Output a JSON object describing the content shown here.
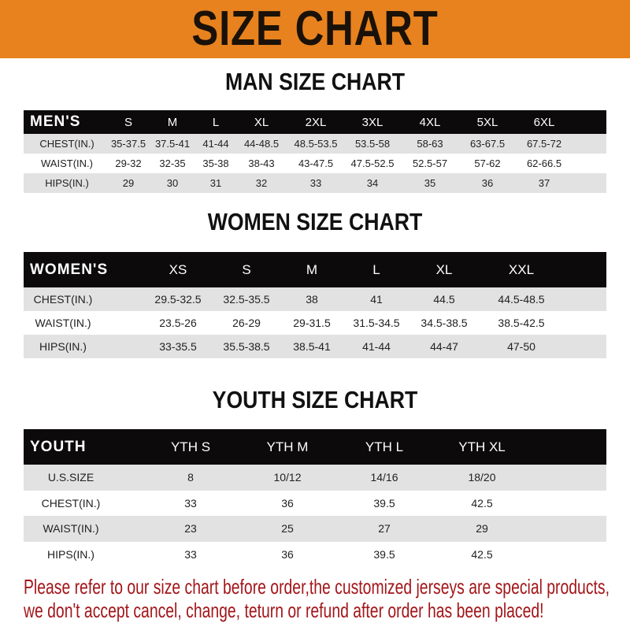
{
  "banner": {
    "title": "SIZE CHART",
    "color": "#e8821e"
  },
  "men": {
    "title": "MAN SIZE CHART",
    "header": [
      "MEN'S",
      "S",
      "M",
      "L",
      "XL",
      "2XL",
      "3XL",
      "4XL",
      "5XL",
      "6XL"
    ],
    "rows": [
      [
        "CHEST(IN.)",
        "35-37.5",
        "37.5-41",
        "41-44",
        "44-48.5",
        "48.5-53.5",
        "53.5-58",
        "58-63",
        "63-67.5",
        "67.5-72"
      ],
      [
        "WAIST(IN.)",
        "29-32",
        "32-35",
        "35-38",
        "38-43",
        "43-47.5",
        "47.5-52.5",
        "52.5-57",
        "57-62",
        "62-66.5"
      ],
      [
        "HIPS(IN.)",
        "29",
        "30",
        "31",
        "32",
        "33",
        "34",
        "35",
        "36",
        "37"
      ]
    ]
  },
  "women": {
    "title": "WOMEN SIZE CHART",
    "header": [
      "WOMEN'S",
      "XS",
      "S",
      "M",
      "L",
      "XL",
      "XXL"
    ],
    "rows": [
      [
        "CHEST(IN.)",
        "29.5-32.5",
        "32.5-35.5",
        "38",
        "41",
        "44.5",
        "44.5-48.5"
      ],
      [
        "WAIST(IN.)",
        "23.5-26",
        "26-29",
        "29-31.5",
        "31.5-34.5",
        "34.5-38.5",
        "38.5-42.5"
      ],
      [
        "HIPS(IN.)",
        "33-35.5",
        "35.5-38.5",
        "38.5-41",
        "41-44",
        "44-47",
        "47-50"
      ]
    ]
  },
  "youth": {
    "title": "YOUTH SIZE CHART",
    "header": [
      "YOUTH",
      "YTH S",
      "YTH M",
      "YTH L",
      "YTH XL"
    ],
    "rows": [
      [
        "U.S.SIZE",
        "8",
        "10/12",
        "14/16",
        "18/20"
      ],
      [
        "CHEST(IN.)",
        "33",
        "36",
        "39.5",
        "42.5"
      ],
      [
        "WAIST(IN.)",
        "23",
        "25",
        "27",
        "29"
      ],
      [
        "HIPS(IN.)",
        "33",
        "36",
        "39.5",
        "42.5"
      ]
    ]
  },
  "footer": {
    "line1": "Please refer to our size chart before order,the customized jerseys are special products,",
    "line2": "we don't accept cancel, change, teturn or refund after order has been placed!",
    "color": "#a3161a"
  }
}
